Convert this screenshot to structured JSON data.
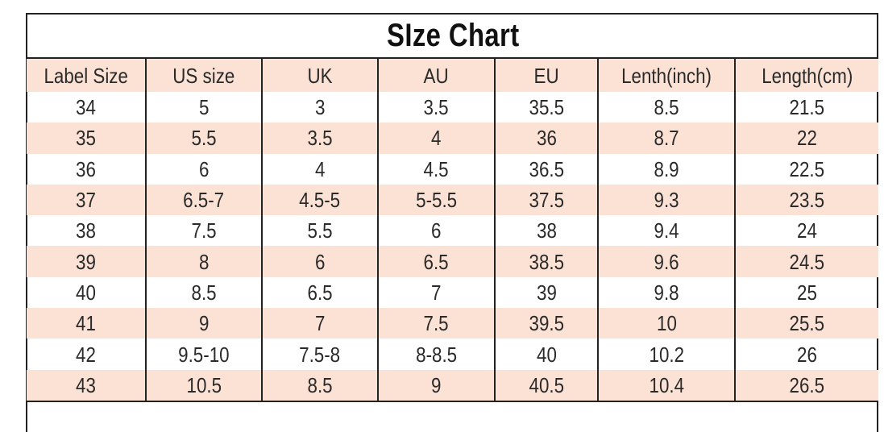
{
  "title": "SIze Chart",
  "headers": [
    "Label Size",
    "US size",
    "UK",
    "AU",
    "EU",
    "Lenth(inch)",
    "Length(cm)"
  ],
  "rows": [
    [
      "34",
      "5",
      "3",
      "3.5",
      "35.5",
      "8.5",
      "21.5"
    ],
    [
      "35",
      "5.5",
      "3.5",
      "4",
      "36",
      "8.7",
      "22"
    ],
    [
      "36",
      "6",
      "4",
      "4.5",
      "36.5",
      "8.9",
      "22.5"
    ],
    [
      "37",
      "6.5-7",
      "4.5-5",
      "5-5.5",
      "37.5",
      "9.3",
      "23.5"
    ],
    [
      "38",
      "7.5",
      "5.5",
      "6",
      "38",
      "9.4",
      "24"
    ],
    [
      "39",
      "8",
      "6",
      "6.5",
      "38.5",
      "9.6",
      "24.5"
    ],
    [
      "40",
      "8.5",
      "6.5",
      "7",
      "39",
      "9.8",
      "25"
    ],
    [
      "41",
      "9",
      "7",
      "7.5",
      "39.5",
      "10",
      "25.5"
    ],
    [
      "42",
      "9.5-10",
      "7.5-8",
      "8-8.5",
      "40",
      "10.2",
      "26"
    ],
    [
      "43",
      "10.5",
      "8.5",
      "9",
      "40.5",
      "10.4",
      "26.5"
    ]
  ],
  "colors": {
    "stripe": "#fbe2d5",
    "border": "#222222"
  }
}
